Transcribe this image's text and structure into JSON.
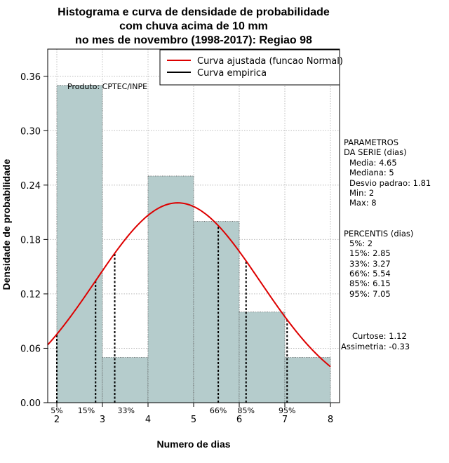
{
  "chart_data": {
    "type": "bar",
    "title_lines": [
      "Histograma e curva de densidade de probabilidade",
      "com chuva acima de 10 mm",
      "no mes de novembro (1998-2017): Regiao 98"
    ],
    "xlabel": "Numero de dias",
    "ylabel": "Densidade de probabilidade",
    "xlim": [
      1.8,
      8.2
    ],
    "ylim": [
      0,
      0.39
    ],
    "xticks": [
      2,
      3,
      4,
      5,
      6,
      7,
      8
    ],
    "yticks": [
      0.0,
      0.06,
      0.12,
      0.18,
      0.24,
      0.3,
      0.36
    ],
    "ytick_labels": [
      "0.00",
      "0.06",
      "0.12",
      "0.18",
      "0.24",
      "0.30",
      "0.36"
    ],
    "bins": [
      {
        "from": 2,
        "to": 3,
        "density": 0.35
      },
      {
        "from": 3,
        "to": 4,
        "density": 0.05
      },
      {
        "from": 4,
        "to": 5,
        "density": 0.25
      },
      {
        "from": 5,
        "to": 6,
        "density": 0.2
      },
      {
        "from": 6,
        "to": 7,
        "density": 0.1
      },
      {
        "from": 7,
        "to": 8,
        "density": 0.05
      }
    ],
    "normal_curve": {
      "mean": 4.65,
      "sd": 1.81
    },
    "percentiles": [
      {
        "label": "5%",
        "value": 2
      },
      {
        "label": "15%",
        "value": 2.85
      },
      {
        "label": "33%",
        "value": 3.27
      },
      {
        "label": "66%",
        "value": 5.54
      },
      {
        "label": "85%",
        "value": 6.15
      },
      {
        "label": "95%",
        "value": 7.05
      }
    ],
    "legend": [
      {
        "label": "Curva ajustada (funcao Normal)",
        "color": "#dd0000"
      },
      {
        "label": "Curva empirica",
        "color": "#000000"
      }
    ],
    "legend_position": "top-right",
    "annotation": "Produto: CPTEC/INPE",
    "colors": {
      "bar_fill": "#b5cccc",
      "bar_stroke": "#555555",
      "curve": "#dd0000",
      "grid": "#bbbbbb"
    }
  },
  "side_panel": {
    "params_title": [
      "PARAMETROS",
      "DA SERIE (dias)"
    ],
    "params": [
      "Media: 4.65",
      "Mediana: 5",
      "Desvio padrao: 1.81",
      "Min: 2",
      "Max: 8"
    ],
    "percentis_title": "PERCENTIS (dias)",
    "percentis": [
      "5%: 2",
      "15%: 2.85",
      "33%: 3.27",
      "66%: 5.54",
      "85%: 6.15",
      "95%: 7.05"
    ],
    "curtose": "Curtose: 1.12",
    "assimetria": "Assimetria: -0.33"
  }
}
